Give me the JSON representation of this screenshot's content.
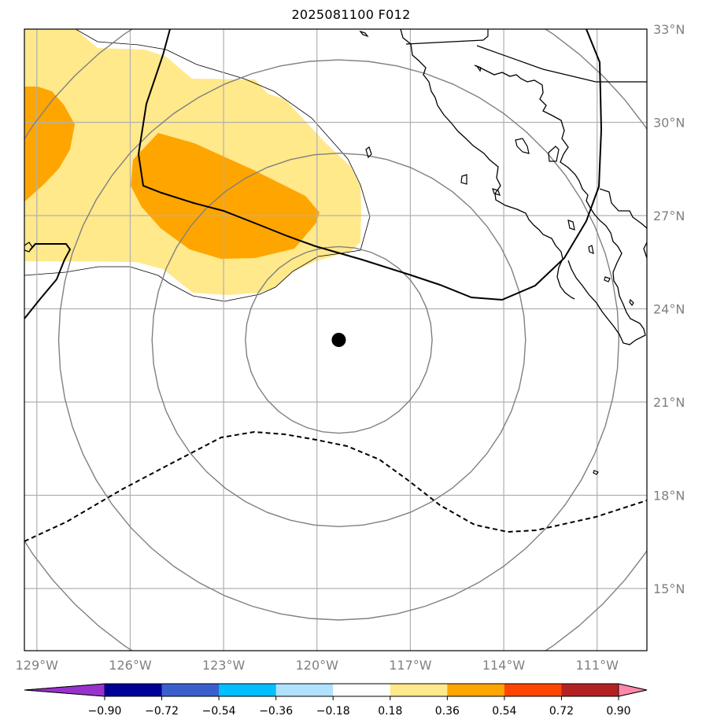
{
  "title": "2025081100 F012",
  "map": {
    "lat_labels": [
      "33°N",
      "30°N",
      "27°N",
      "24°N",
      "21°N",
      "18°N",
      "15°N"
    ],
    "lon_labels": [
      "129°W",
      "126°W",
      "123°W",
      "120°W",
      "117°W",
      "114°W",
      "111°W"
    ],
    "lat_values": [
      33,
      30,
      27,
      24,
      21,
      18,
      15
    ],
    "lon_values": [
      -129,
      -126,
      -123,
      -120,
      -117,
      -114,
      -111
    ],
    "extent": {
      "lon_min": -129.4,
      "lon_max": -109.4,
      "lat_min": 13.0,
      "lat_max": 33.0
    },
    "center_marker": {
      "lon": -119.3,
      "lat": 23.0
    },
    "range_rings_deg": [
      3,
      6,
      9,
      12
    ],
    "label_color": "#808080",
    "grid_color": "#b0b0b0"
  },
  "colorbar": {
    "tick_labels": [
      "−0.90",
      "−0.72",
      "−0.54",
      "−0.36",
      "−0.18",
      "0.18",
      "0.36",
      "0.54",
      "0.72",
      "0.90"
    ],
    "boundaries": [
      -0.9,
      -0.72,
      -0.54,
      -0.36,
      -0.18,
      0.18,
      0.36,
      0.54,
      0.72,
      0.9
    ],
    "under_color": "#9932cc",
    "over_color": "#ff88aa",
    "colors": [
      "#000096",
      "#3a5fcd",
      "#00bfff",
      "#b0e2ff",
      "#ffffff",
      "#ffe98b",
      "#ffa500",
      "#ff4500",
      "#b22222"
    ]
  }
}
